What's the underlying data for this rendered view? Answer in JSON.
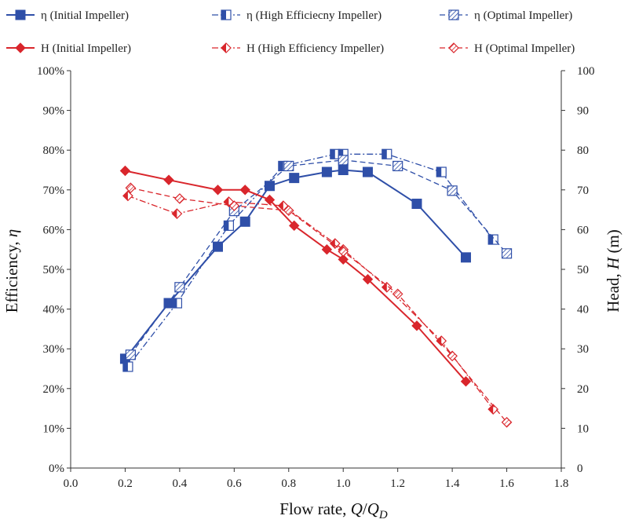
{
  "chart_data": {
    "type": "line",
    "xlabel": {
      "prefix": "Flow rate, ",
      "var": "Q",
      "sep": "/",
      "var2": "Q",
      "sub": "D"
    },
    "ylabel_left": {
      "prefix": "Efficiency, ",
      "var": "η"
    },
    "ylabel_right": {
      "prefix": "Head, ",
      "var": "H",
      "suffix": " (m)"
    },
    "xlim": [
      0.0,
      1.8
    ],
    "x_ticks": [
      "0.0",
      "0.2",
      "0.4",
      "0.6",
      "0.8",
      "1.0",
      "1.2",
      "1.4",
      "1.6",
      "1.8"
    ],
    "ylim_left": [
      0,
      100
    ],
    "y_ticks_left": [
      "0%",
      "10%",
      "20%",
      "30%",
      "40%",
      "50%",
      "60%",
      "70%",
      "80%",
      "90%",
      "100%"
    ],
    "ylim_right": [
      0,
      100
    ],
    "y_ticks_right": [
      "0",
      "10",
      "20",
      "30",
      "40",
      "50",
      "60",
      "70",
      "80",
      "90",
      "100"
    ],
    "grid": false,
    "legend_position": "top",
    "colors": {
      "blue": "#2f4fa8",
      "red": "#d9262c"
    },
    "series": [
      {
        "name": "η (Initial Impeller)",
        "axis": "left",
        "color": "#2f4fa8",
        "marker": "square-filled",
        "dash": "solid",
        "x": [
          0.2,
          0.36,
          0.54,
          0.64,
          0.73,
          0.82,
          0.94,
          1.0,
          1.09,
          1.27,
          1.45
        ],
        "y": [
          27.5,
          41.5,
          55.7,
          62.0,
          71.0,
          73.0,
          74.5,
          75.0,
          74.5,
          66.5,
          53.0
        ]
      },
      {
        "name": "η (High Efficiecny Impeller)",
        "axis": "left",
        "color": "#2f4fa8",
        "marker": "square-half",
        "dash": "dashdot",
        "x": [
          0.21,
          0.39,
          0.58,
          0.78,
          0.97,
          1.0,
          1.16,
          1.36,
          1.55
        ],
        "y": [
          25.5,
          41.5,
          61.0,
          76.0,
          79.0,
          79.0,
          79.0,
          74.5,
          57.5
        ]
      },
      {
        "name": "η (Optimal Impeller)",
        "axis": "left",
        "color": "#2f4fa8",
        "marker": "square-hatch",
        "dash": "dash",
        "x": [
          0.22,
          0.4,
          0.6,
          0.8,
          1.0,
          1.2,
          1.4,
          1.6
        ],
        "y": [
          28.5,
          45.5,
          64.7,
          76.0,
          77.5,
          76.0,
          69.8,
          54.0
        ]
      },
      {
        "name": "H (Initial Impeller)",
        "axis": "right",
        "color": "#d9262c",
        "marker": "diamond-filled",
        "dash": "solid",
        "x": [
          0.2,
          0.36,
          0.54,
          0.64,
          0.73,
          0.82,
          0.94,
          1.0,
          1.09,
          1.27,
          1.45
        ],
        "y": [
          74.8,
          72.5,
          70.0,
          70.0,
          67.5,
          61.0,
          55.0,
          52.5,
          47.5,
          35.8,
          21.8
        ]
      },
      {
        "name": "H (High Efficiency Impeller)",
        "axis": "right",
        "color": "#d9262c",
        "marker": "diamond-half",
        "dash": "dashdot",
        "x": [
          0.21,
          0.39,
          0.58,
          0.78,
          0.97,
          1.0,
          1.16,
          1.36,
          1.55
        ],
        "y": [
          68.5,
          64.0,
          67.0,
          66.0,
          56.5,
          55.0,
          45.5,
          32.0,
          14.8
        ]
      },
      {
        "name": "H (Optimal Impeller)",
        "axis": "right",
        "color": "#d9262c",
        "marker": "diamond-hatch",
        "dash": "dash",
        "x": [
          0.22,
          0.4,
          0.6,
          0.8,
          1.0,
          1.2,
          1.4,
          1.6
        ],
        "y": [
          70.5,
          67.8,
          66.0,
          64.8,
          54.5,
          43.8,
          28.2,
          11.5
        ]
      }
    ]
  }
}
